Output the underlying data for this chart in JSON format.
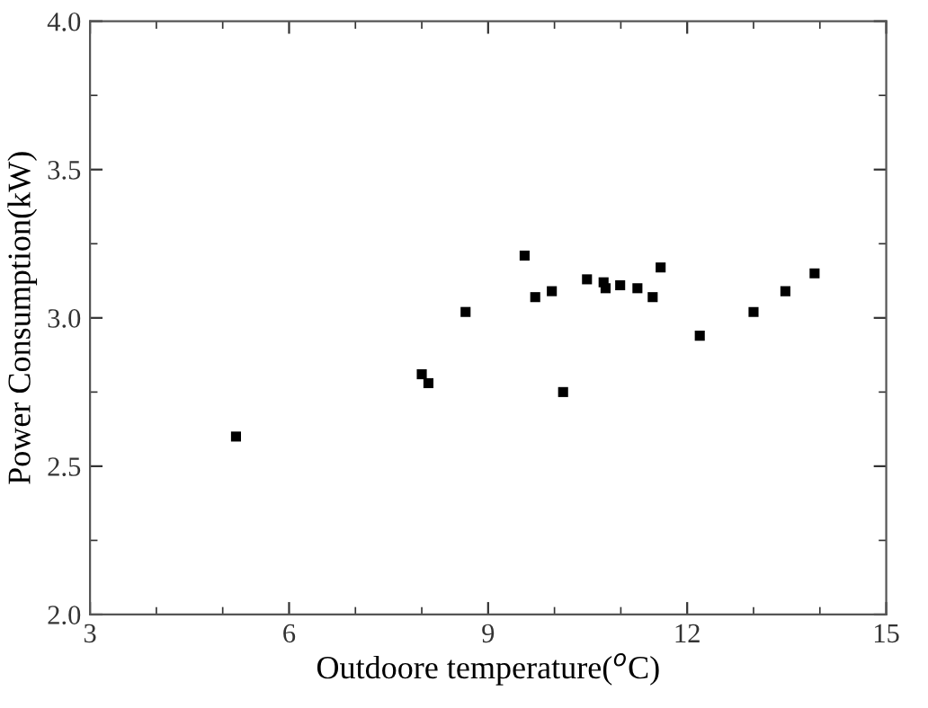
{
  "chart_data": {
    "type": "scatter",
    "xlabel": "Outdoore temperature($^{o}$C)",
    "ylabel": "Power Consumption(kW)",
    "x": [
      5.2,
      8.0,
      8.1,
      8.66,
      9.55,
      9.71,
      9.96,
      10.13,
      10.49,
      10.74,
      10.77,
      10.99,
      11.25,
      11.48,
      11.6,
      12.19,
      13.0,
      13.48,
      13.92
    ],
    "series": [
      {
        "color": "#000000",
        "values": [
          2.6,
          2.81,
          2.78,
          3.02,
          3.21,
          3.07,
          3.09,
          2.75,
          3.13,
          3.12,
          3.1,
          3.11,
          3.1,
          3.07,
          3.17,
          2.94,
          3.02,
          3.09,
          3.15
        ]
      }
    ],
    "marker": "square",
    "xlim": [
      3,
      15
    ],
    "ylim": [
      2.0,
      4.0
    ],
    "xticks": [
      3,
      6,
      9,
      12,
      15
    ],
    "yticks": [
      {
        "value": 2.0,
        "label": "2.0"
      },
      {
        "value": 2.5,
        "label": "2.5"
      },
      {
        "value": 3.0,
        "label": "3.0"
      },
      {
        "value": 3.5,
        "label": "3.5"
      },
      {
        "value": 4.0,
        "label": "4.0"
      }
    ],
    "grid": false,
    "legend": false
  }
}
